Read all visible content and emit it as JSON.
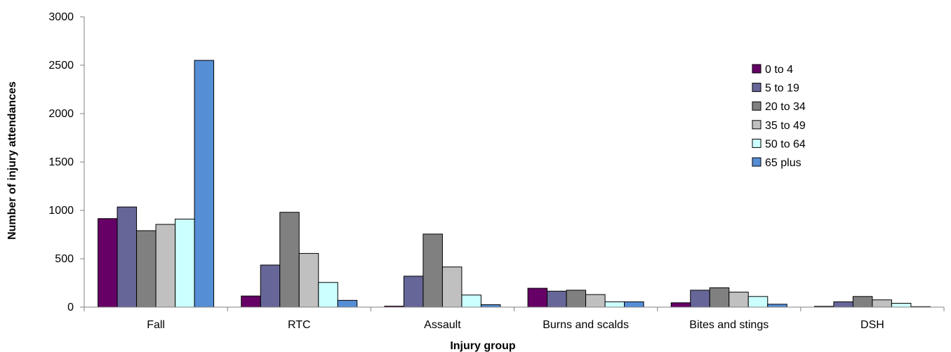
{
  "chart_data": {
    "type": "bar",
    "title": "",
    "xlabel": "Injury group",
    "ylabel": "Number of injury attendances",
    "ylim": [
      0,
      3000
    ],
    "yticks": [
      0,
      500,
      1000,
      1500,
      2000,
      2500,
      3000
    ],
    "grid": false,
    "legend_position": "top-right",
    "categories": [
      "Fall",
      "RTC",
      "Assault",
      "Burns and scalds",
      "Bites and stings",
      "DSH"
    ],
    "series": [
      {
        "name": "0 to 4",
        "color": "#660066",
        "values": [
          915,
          115,
          10,
          195,
          45,
          8
        ]
      },
      {
        "name": "5 to 19",
        "color": "#666699",
        "values": [
          1035,
          435,
          320,
          165,
          175,
          55
        ]
      },
      {
        "name": "20 to 34",
        "color": "#808080",
        "values": [
          790,
          980,
          755,
          175,
          200,
          110
        ]
      },
      {
        "name": "35 to 49",
        "color": "#C0C0C0",
        "values": [
          855,
          555,
          415,
          130,
          155,
          75
        ]
      },
      {
        "name": "50 to 64",
        "color": "#CCFFFF",
        "values": [
          910,
          255,
          125,
          55,
          110,
          40
        ]
      },
      {
        "name": "65 plus",
        "color": "#558ED5",
        "values": [
          2550,
          70,
          25,
          55,
          30,
          5
        ]
      }
    ]
  }
}
